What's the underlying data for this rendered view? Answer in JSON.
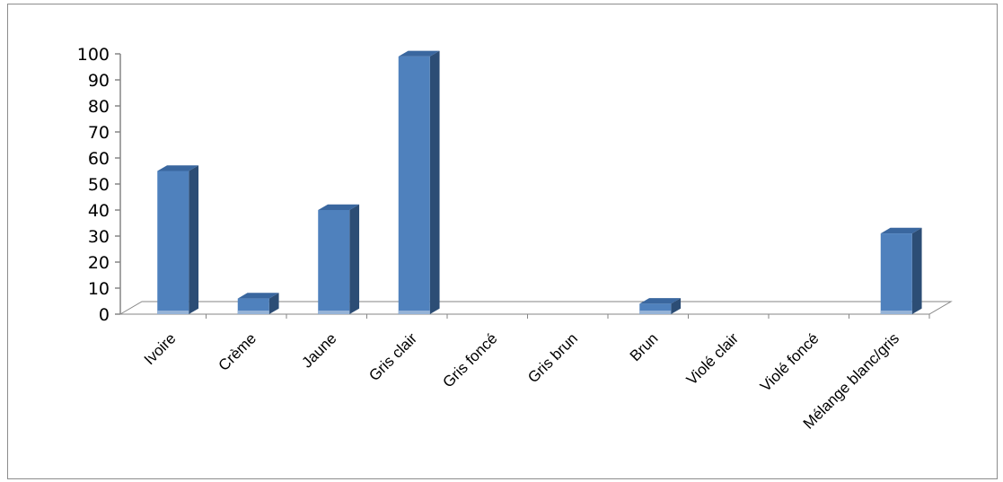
{
  "chart_data": {
    "type": "bar",
    "categories": [
      "Ivoire",
      "Crème",
      "Jaune",
      "Gris clair",
      "Gris foncé",
      "Gris brun",
      "Brun",
      "Violé clair",
      "Violé foncé",
      "Mélange blanc/gris"
    ],
    "values": [
      55,
      6,
      40,
      99,
      0,
      0,
      4,
      0,
      0,
      31
    ],
    "ylim": [
      0,
      100
    ],
    "yticks": [
      0,
      10,
      20,
      30,
      40,
      50,
      60,
      70,
      80,
      90,
      100
    ],
    "title": "",
    "xlabel": "",
    "ylabel": "",
    "grid": false,
    "legend": "none",
    "style": "3d-column",
    "colors": {
      "bar_front": "#4f81bd",
      "bar_side": "#2c4d75",
      "bar_top": "#3a679f",
      "bar_base": "#95b3d7",
      "floor": "#ffffff",
      "axis": "#868686"
    }
  }
}
